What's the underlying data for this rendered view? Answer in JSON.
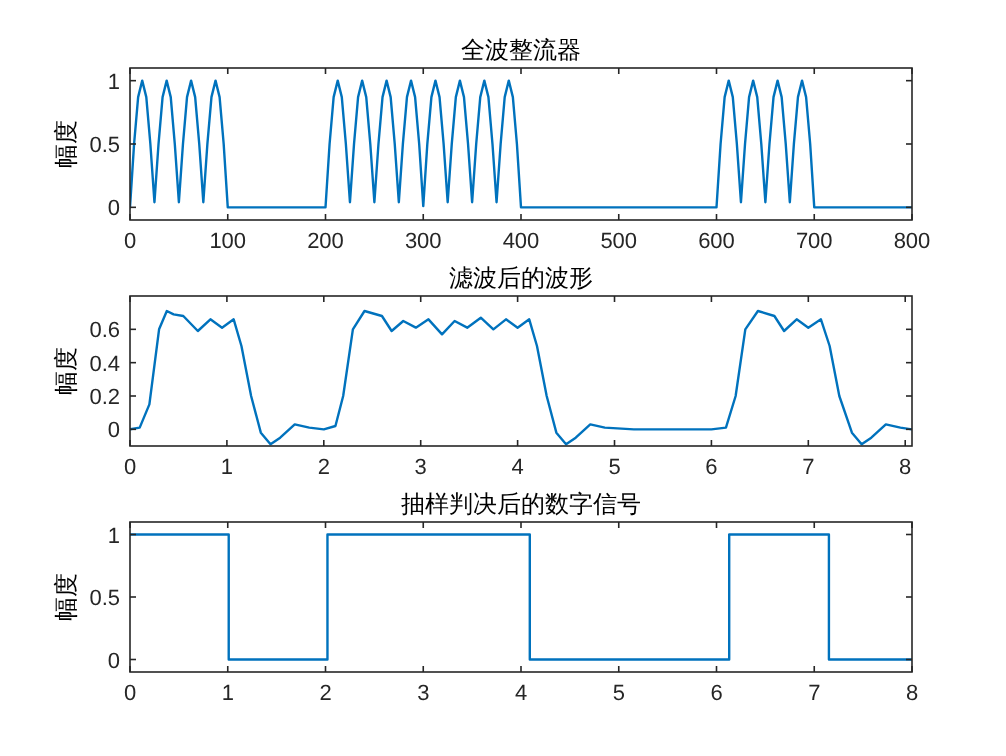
{
  "chart_data": [
    {
      "type": "line",
      "title": "全波整流器",
      "ylabel": "幅度",
      "xlim": [
        0,
        800
      ],
      "ylim": [
        -0.1,
        1.1
      ],
      "xticks": [
        0,
        100,
        200,
        300,
        400,
        500,
        600,
        700,
        800
      ],
      "yticks": [
        0,
        0.5,
        1
      ],
      "grid": false,
      "series": [
        {
          "color": "#0072bd",
          "x": [
            0,
            4.17,
            8.33,
            12.5,
            16.67,
            20.83,
            25,
            29.17,
            33.33,
            37.5,
            41.67,
            45.83,
            50,
            54.17,
            58.33,
            62.5,
            66.67,
            70.83,
            75,
            79.17,
            83.33,
            87.5,
            91.67,
            95.83,
            100,
            200,
            204.17,
            208.33,
            212.5,
            216.67,
            220.83,
            225,
            229.17,
            233.33,
            237.5,
            241.67,
            245.83,
            250,
            254.17,
            258.33,
            262.5,
            266.67,
            270.83,
            275,
            279.17,
            283.33,
            287.5,
            291.67,
            295.83,
            300,
            304.17,
            308.33,
            312.5,
            316.67,
            320.83,
            325,
            329.17,
            333.33,
            337.5,
            341.67,
            345.83,
            350,
            354.17,
            358.33,
            362.5,
            366.67,
            370.83,
            375,
            379.17,
            383.33,
            387.5,
            391.67,
            395.83,
            400,
            600,
            604.17,
            608.33,
            612.5,
            616.67,
            620.83,
            625,
            629.17,
            633.33,
            637.5,
            641.67,
            645.83,
            650,
            654.17,
            658.33,
            662.5,
            666.67,
            670.83,
            675,
            679.17,
            683.33,
            687.5,
            691.67,
            695.83,
            700,
            800
          ],
          "values": [
            0,
            0.5,
            0.87,
            1,
            0.87,
            0.5,
            0.04,
            0.5,
            0.87,
            1,
            0.87,
            0.5,
            0.04,
            0.5,
            0.87,
            1,
            0.87,
            0.5,
            0.04,
            0.5,
            0.87,
            1,
            0.87,
            0.5,
            0,
            0,
            0.5,
            0.87,
            1,
            0.87,
            0.5,
            0.04,
            0.5,
            0.87,
            1,
            0.87,
            0.5,
            0.04,
            0.5,
            0.87,
            1,
            0.87,
            0.5,
            0.04,
            0.5,
            0.87,
            1,
            0.87,
            0.5,
            0.01,
            0.5,
            0.87,
            1,
            0.87,
            0.5,
            0.04,
            0.5,
            0.87,
            1,
            0.87,
            0.5,
            0.04,
            0.5,
            0.87,
            1,
            0.87,
            0.5,
            0.04,
            0.5,
            0.87,
            1,
            0.87,
            0.5,
            0,
            0,
            0.5,
            0.87,
            1,
            0.87,
            0.5,
            0.04,
            0.5,
            0.87,
            1,
            0.87,
            0.5,
            0.04,
            0.5,
            0.87,
            1,
            0.87,
            0.5,
            0.04,
            0.5,
            0.87,
            1,
            0.87,
            0.5,
            0,
            0
          ]
        }
      ]
    },
    {
      "type": "line",
      "title": "滤波后的波形",
      "ylabel": "幅度",
      "xlim": [
        0,
        8.07
      ],
      "ylim": [
        -0.1,
        0.8
      ],
      "xticks": [
        0,
        1,
        2,
        3,
        4,
        5,
        6,
        7,
        8
      ],
      "yticks": [
        0,
        0.2,
        0.4,
        0.6
      ],
      "grid": false,
      "series": [
        {
          "color": "#0072bd",
          "x": [
            0,
            0.1,
            0.2,
            0.3,
            0.38,
            0.45,
            0.55,
            0.7,
            0.83,
            0.95,
            1.07,
            1.15,
            1.25,
            1.35,
            1.45,
            1.55,
            1.7,
            1.85,
            2.0,
            2.12,
            2.2,
            2.3,
            2.42,
            2.6,
            2.7,
            2.82,
            2.95,
            3.08,
            3.22,
            3.35,
            3.48,
            3.62,
            3.75,
            3.88,
            4.0,
            4.12,
            4.2,
            4.3,
            4.4,
            4.5,
            4.6,
            4.75,
            4.9,
            5.2,
            6.0,
            6.15,
            6.25,
            6.35,
            6.48,
            6.65,
            6.75,
            6.88,
            7.0,
            7.13,
            7.22,
            7.32,
            7.45,
            7.55,
            7.65,
            7.8,
            7.95,
            8.07
          ],
          "values": [
            0,
            0.01,
            0.15,
            0.6,
            0.71,
            0.69,
            0.68,
            0.59,
            0.66,
            0.61,
            0.66,
            0.5,
            0.2,
            -0.02,
            -0.09,
            -0.05,
            0.03,
            0.01,
            0,
            0.02,
            0.2,
            0.6,
            0.71,
            0.68,
            0.59,
            0.65,
            0.61,
            0.66,
            0.57,
            0.65,
            0.61,
            0.67,
            0.6,
            0.66,
            0.61,
            0.66,
            0.5,
            0.2,
            -0.02,
            -0.09,
            -0.05,
            0.03,
            0.01,
            0,
            0,
            0.01,
            0.2,
            0.6,
            0.71,
            0.68,
            0.59,
            0.66,
            0.61,
            0.66,
            0.5,
            0.2,
            -0.02,
            -0.09,
            -0.05,
            0.03,
            0.01,
            0
          ]
        }
      ]
    },
    {
      "type": "line",
      "title": "抽样判决后的数字信号",
      "ylabel": "幅度",
      "xlim": [
        0,
        8
      ],
      "ylim": [
        -0.1,
        1.1
      ],
      "xticks": [
        0,
        1,
        2,
        3,
        4,
        5,
        6,
        7,
        8
      ],
      "yticks": [
        0,
        0.5,
        1
      ],
      "grid": false,
      "series": [
        {
          "color": "#0072bd",
          "x": [
            0,
            1.01,
            1.01,
            2.02,
            2.02,
            4.09,
            4.09,
            6.13,
            6.13,
            7.15,
            7.15,
            8
          ],
          "values": [
            1,
            1,
            0,
            0,
            1,
            1,
            0,
            0,
            1,
            1,
            0,
            0
          ]
        }
      ]
    }
  ]
}
